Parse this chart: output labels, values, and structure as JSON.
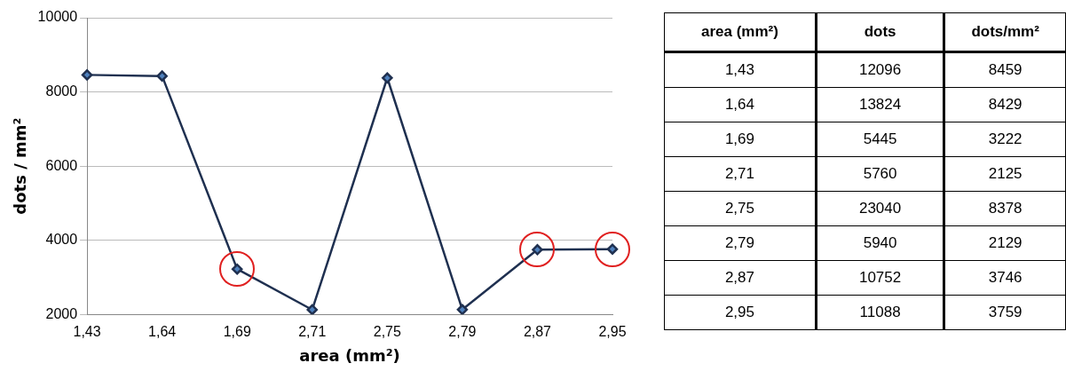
{
  "chart_data": [
    {
      "type": "line",
      "categories": [
        "1,43",
        "1,64",
        "1,69",
        "2,71",
        "2,75",
        "2,79",
        "2,87",
        "2,95"
      ],
      "series": [
        {
          "color": "#1f3050",
          "values": [
            8459,
            8429,
            3222,
            2125,
            8378,
            2129,
            3746,
            3759
          ]
        }
      ],
      "marker": "diamond",
      "ylim": [
        2000,
        10000
      ],
      "yticks": [
        2000,
        4000,
        6000,
        8000,
        10000
      ],
      "grid": "y",
      "xlabel": "area (mm²)",
      "ylabel": "dots / mm²"
    },
    {
      "type": "other",
      "data_labels": true,
      "xlabel": "area (mm²)",
      "categories": [
        "1,43",
        "1,64",
        "1,69",
        "2,71",
        "2,75",
        "2,79",
        "2,87",
        "2,95"
      ],
      "series": [
        {
          "name": "dots",
          "values": [
            12096,
            13824,
            5445,
            5760,
            23040,
            5940,
            10752,
            11088
          ]
        },
        {
          "name": "dots/mm²",
          "values": [
            8459,
            8429,
            3222,
            2125,
            8378,
            2129,
            3746,
            3759
          ]
        }
      ]
    }
  ]
}
